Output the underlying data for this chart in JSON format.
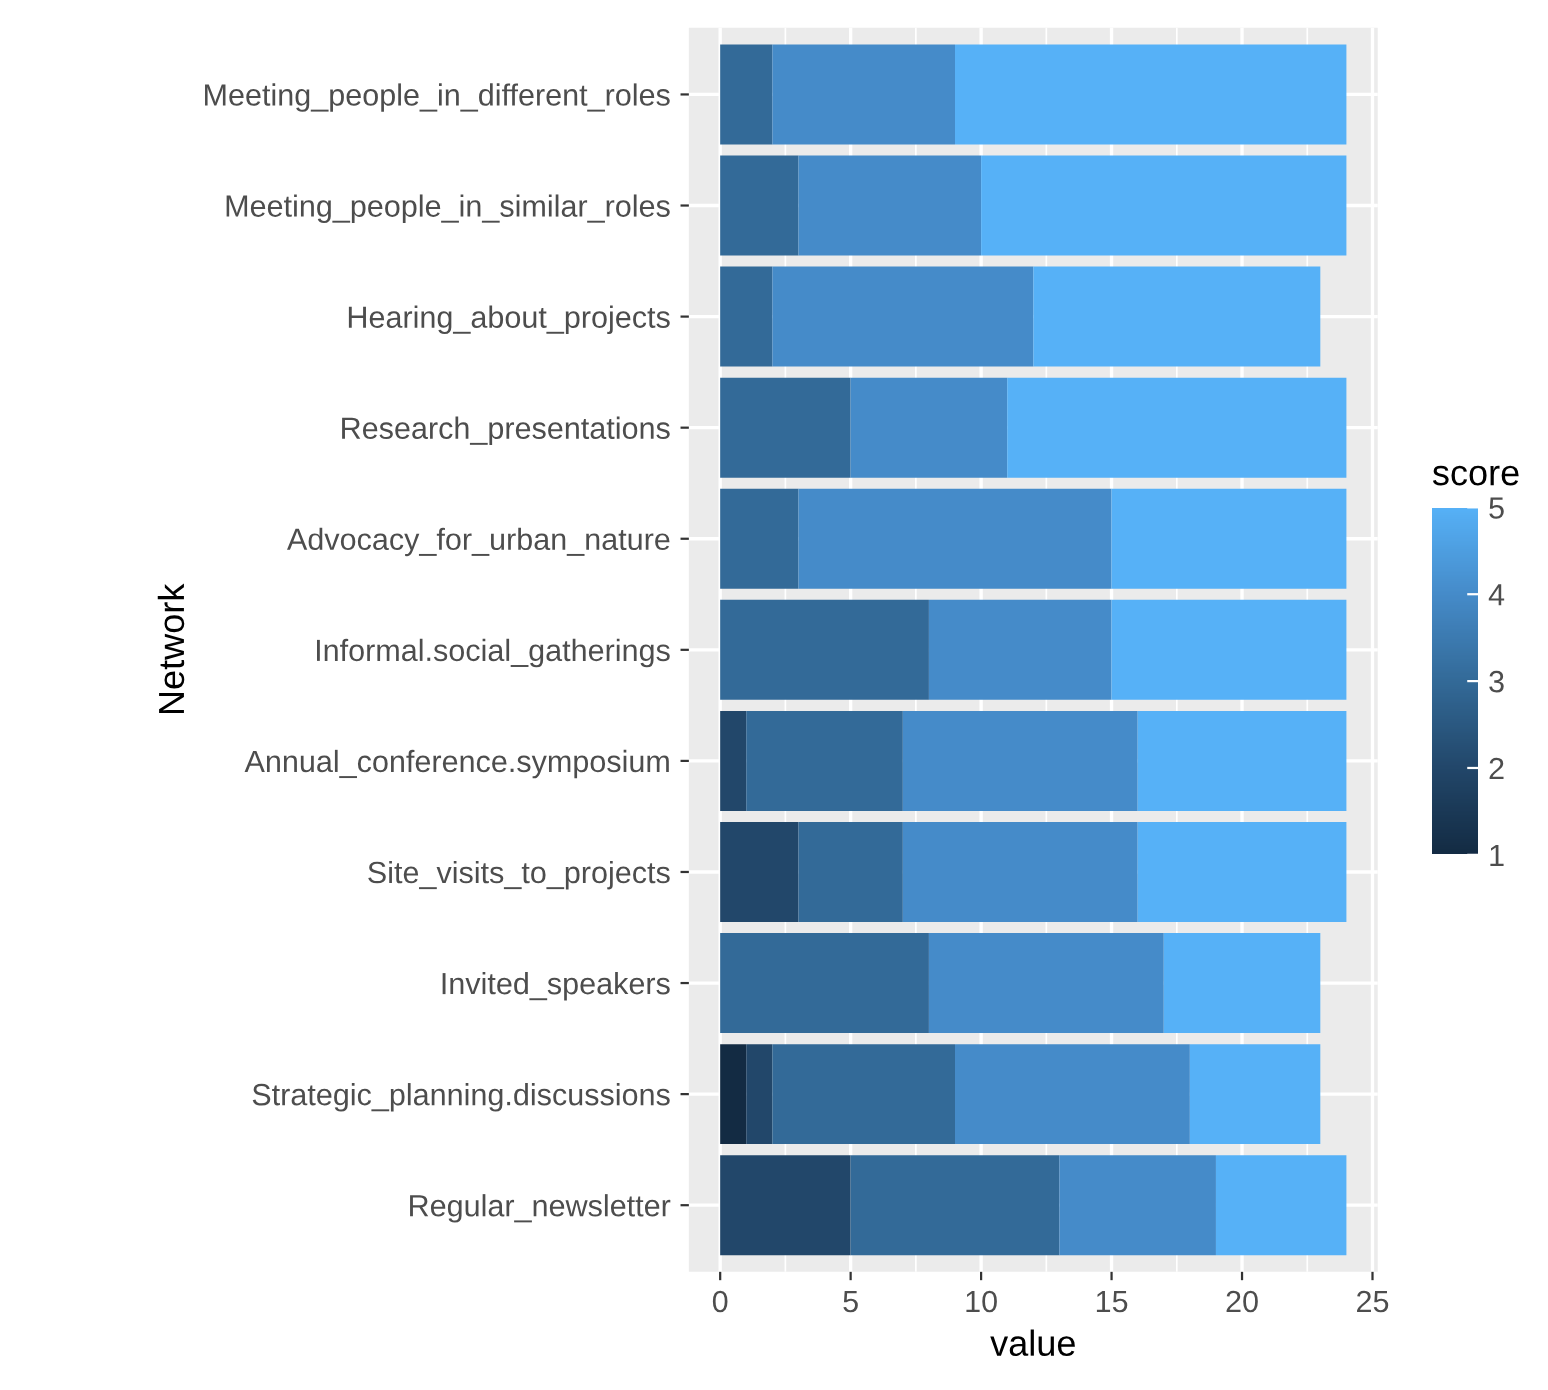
{
  "chart_data": {
    "type": "bar",
    "orientation": "horizontal",
    "stacked": true,
    "xlabel": "value",
    "ylabel": "Network",
    "clabel": "score",
    "clim": [
      1,
      5
    ],
    "cticks": [
      1,
      2,
      3,
      4,
      5
    ],
    "categories": [
      "Meeting_people_in_different_roles",
      "Meeting_people_in_similar_roles",
      "Hearing_about_projects",
      "Research_presentations",
      "Advocacy_for_urban_nature",
      "Informal.social_gatherings",
      "Annual_conference.symposium",
      "Site_visits_to_projects",
      "Invited_speakers",
      "Strategic_planning.discussions",
      "Regular_newsletter"
    ],
    "series": [
      {
        "color": "#132b43",
        "values": [
          null,
          null,
          null,
          null,
          null,
          null,
          null,
          null,
          null,
          1,
          null
        ]
      },
      {
        "color": "#22476a",
        "values": [
          null,
          null,
          null,
          null,
          null,
          null,
          1,
          3,
          null,
          1,
          5
        ]
      },
      {
        "color": "#336a98",
        "values": [
          2,
          3,
          2,
          5,
          3,
          8,
          6,
          4,
          8,
          7,
          8
        ]
      },
      {
        "color": "#458bc9",
        "values": [
          7,
          7,
          10,
          6,
          12,
          7,
          9,
          9,
          9,
          9,
          6
        ]
      },
      {
        "color": "#56b1f7",
        "values": [
          15,
          14,
          11,
          13,
          9,
          9,
          8,
          8,
          6,
          5,
          5
        ]
      }
    ],
    "xlim": [
      -1.2,
      25.2
    ],
    "xticks": [
      0,
      5,
      10,
      15,
      20,
      25
    ],
    "grid": true
  }
}
